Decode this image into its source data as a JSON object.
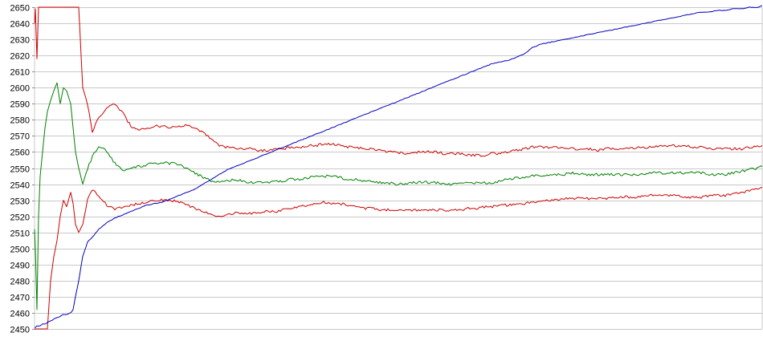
{
  "chart_data": {
    "type": "line",
    "title": "",
    "xlabel": "",
    "ylabel": "",
    "ylim": [
      2450,
      2650
    ],
    "y_ticks": [
      "2650",
      "2640",
      "2630",
      "2620",
      "2610",
      "2600",
      "2590",
      "2580",
      "2570",
      "2560",
      "2550",
      "2540",
      "2530",
      "2520",
      "2510",
      "2500",
      "2490",
      "2480",
      "2470",
      "2460",
      "2450"
    ],
    "grid": true,
    "legend": "none",
    "x": [
      0,
      1,
      3,
      5,
      7,
      10,
      13,
      16,
      20,
      24,
      28,
      32,
      36,
      40,
      45,
      48,
      51,
      55,
      60,
      66,
      72,
      80,
      90,
      100,
      110,
      120,
      130,
      140,
      150,
      160,
      170,
      180,
      190,
      200,
      210,
      220,
      230,
      240,
      250,
      260,
      270,
      280,
      290,
      300,
      310,
      320,
      330,
      340,
      350,
      360,
      370,
      380,
      390,
      400,
      410,
      420,
      430,
      440,
      450,
      460,
      470,
      480,
      490,
      500,
      510,
      520,
      530,
      540,
      550,
      560,
      570,
      580,
      590,
      600,
      610,
      620,
      630,
      640,
      650,
      660,
      670,
      680,
      690,
      700,
      710,
      720,
      730,
      740,
      750,
      760,
      770,
      780,
      790,
      800,
      810,
      820,
      830,
      840,
      850,
      860,
      870,
      880,
      890,
      900,
      906
    ],
    "series": [
      {
        "color": "#cc0000",
        "values": [
          2640,
          2649,
          2618,
          2650,
          2650,
          2650,
          2650,
          2650,
          2650,
          2650,
          2650,
          2650,
          2650,
          2650,
          2650,
          2650,
          2650,
          2650,
          2600,
          2590,
          2572,
          2582,
          2587,
          2590,
          2584,
          2576,
          2574,
          2575,
          2576,
          2576,
          2575,
          2576,
          2577,
          2575,
          2572,
          2568,
          2564,
          2563,
          2562,
          2562,
          2562,
          2561,
          2561,
          2562,
          2562,
          2563,
          2563,
          2564,
          2564,
          2565,
          2565,
          2564,
          2563,
          2563,
          2562,
          2562,
          2561,
          2560,
          2560,
          2559,
          2559,
          2560,
          2560,
          2560,
          2559,
          2559,
          2559,
          2558,
          2558,
          2558,
          2559,
          2559,
          2560,
          2561,
          2562,
          2563,
          2563,
          2563,
          2563,
          2563,
          2562,
          2562,
          2562,
          2561,
          2562,
          2562,
          2562,
          2562,
          2563,
          2563,
          2563,
          2564,
          2564,
          2564,
          2564,
          2563,
          2563,
          2562,
          2562,
          2562,
          2562,
          2562,
          2563,
          2564,
          2564
        ]
      },
      {
        "color": "#008000",
        "values": [
          2512,
          2500,
          2462,
          2520,
          2545,
          2560,
          2575,
          2585,
          2592,
          2598,
          2603,
          2590,
          2600,
          2598,
          2590,
          2575,
          2560,
          2550,
          2540,
          2550,
          2557,
          2564,
          2560,
          2553,
          2548,
          2550,
          2551,
          2552,
          2553,
          2553,
          2553,
          2552,
          2550,
          2547,
          2544,
          2542,
          2541,
          2542,
          2543,
          2542,
          2541,
          2541,
          2541,
          2542,
          2542,
          2543,
          2543,
          2544,
          2545,
          2545,
          2545,
          2544,
          2543,
          2543,
          2542,
          2542,
          2541,
          2541,
          2540,
          2540,
          2541,
          2541,
          2541,
          2541,
          2540,
          2540,
          2540,
          2541,
          2541,
          2541,
          2541,
          2542,
          2543,
          2544,
          2544,
          2545,
          2545,
          2546,
          2546,
          2546,
          2547,
          2546,
          2546,
          2546,
          2546,
          2546,
          2546,
          2546,
          2546,
          2546,
          2547,
          2547,
          2547,
          2547,
          2547,
          2547,
          2547,
          2546,
          2546,
          2546,
          2547,
          2548,
          2549,
          2550,
          2551
        ]
      },
      {
        "color": "#cc0000",
        "values": [
          2450,
          2450,
          2450,
          2450,
          2450,
          2450,
          2450,
          2450,
          2480,
          2495,
          2505,
          2520,
          2530,
          2526,
          2535,
          2528,
          2515,
          2510,
          2515,
          2530,
          2537,
          2533,
          2527,
          2524,
          2526,
          2527,
          2528,
          2529,
          2530,
          2530,
          2530,
          2529,
          2527,
          2525,
          2523,
          2521,
          2520,
          2521,
          2522,
          2522,
          2522,
          2522,
          2523,
          2523,
          2524,
          2525,
          2526,
          2527,
          2528,
          2529,
          2528,
          2528,
          2527,
          2526,
          2525,
          2525,
          2524,
          2524,
          2524,
          2524,
          2524,
          2524,
          2524,
          2524,
          2524,
          2524,
          2524,
          2525,
          2525,
          2526,
          2526,
          2527,
          2527,
          2528,
          2528,
          2529,
          2529,
          2530,
          2530,
          2531,
          2531,
          2531,
          2531,
          2531,
          2531,
          2532,
          2532,
          2532,
          2532,
          2533,
          2533,
          2533,
          2533,
          2533,
          2532,
          2532,
          2532,
          2533,
          2533,
          2533,
          2534,
          2535,
          2536,
          2537,
          2538
        ]
      },
      {
        "color": "#0000bb",
        "values": [
          2451,
          2451,
          2452,
          2452,
          2452,
          2453,
          2453,
          2454,
          2455,
          2456,
          2457,
          2458,
          2459,
          2459,
          2460,
          2462,
          2470,
          2480,
          2495,
          2504,
          2507,
          2512,
          2516,
          2519,
          2521,
          2523,
          2525,
          2527,
          2528,
          2529,
          2531,
          2533,
          2535,
          2537,
          2540,
          2543,
          2546,
          2549,
          2551,
          2553,
          2555,
          2557,
          2559,
          2561,
          2563,
          2565,
          2567,
          2569,
          2571,
          2573,
          2575,
          2577,
          2579,
          2581,
          2583,
          2585,
          2587,
          2589,
          2591,
          2593,
          2595,
          2597,
          2599,
          2601,
          2603,
          2605,
          2607,
          2609,
          2611,
          2613,
          2615,
          2616,
          2617,
          2619,
          2621,
          2625,
          2627,
          2628,
          2629,
          2630,
          2631,
          2632,
          2633,
          2634,
          2635,
          2636,
          2637,
          2638,
          2639,
          2640,
          2641,
          2642,
          2643,
          2644,
          2645,
          2646,
          2647,
          2647,
          2648,
          2648,
          2649,
          2649,
          2650,
          2650,
          2651
        ]
      }
    ]
  }
}
